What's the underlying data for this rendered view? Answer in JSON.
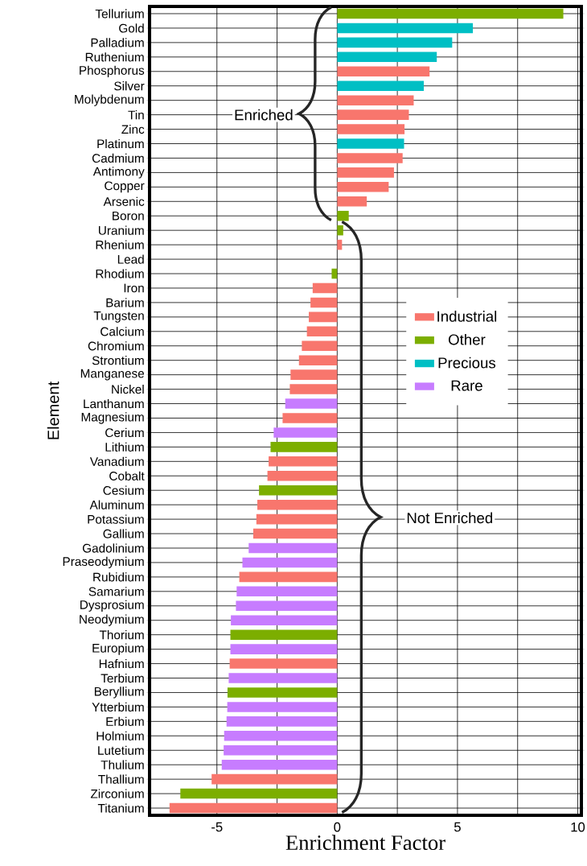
{
  "chart_data": {
    "type": "bar",
    "orientation": "horizontal",
    "xlabel": "Enrichment Factor",
    "ylabel": "Element",
    "categories": [
      "Tellurium",
      "Gold",
      "Palladium",
      "Ruthenium",
      "Phosphorus",
      "Silver",
      "Molybdenum",
      "Tin",
      "Zinc",
      "Platinum",
      "Cadmium",
      "Antimony",
      "Copper",
      "Arsenic",
      "Boron",
      "Uranium",
      "Rhenium",
      "Lead",
      "Rhodium",
      "Iron",
      "Barium",
      "Tungsten",
      "Calcium",
      "Chromium",
      "Strontium",
      "Manganese",
      "Nickel",
      "Lanthanum",
      "Magnesium",
      "Cerium",
      "Lithium",
      "Vanadium",
      "Cobalt",
      "Cesium",
      "Aluminum",
      "Potassium",
      "Gallium",
      "Gadolinium",
      "Praseodymium",
      "Rubidium",
      "Samarium",
      "Dysprosium",
      "Neodymium",
      "Thorium",
      "Europium",
      "Hafnium",
      "Terbium",
      "Beryllium",
      "Ytterbium",
      "Erbium",
      "Holmium",
      "Lutetium",
      "Thulium",
      "Thallium",
      "Zirconium",
      "Titanium"
    ],
    "series": [
      {
        "name": "Industrial",
        "color": "#f8766d",
        "values": [
          null,
          null,
          null,
          null,
          3.84,
          null,
          3.18,
          2.98,
          2.8,
          null,
          2.72,
          2.36,
          2.14,
          1.23,
          null,
          null,
          0.2,
          null,
          null,
          -1.02,
          -1.11,
          -1.18,
          -1.26,
          -1.47,
          -1.59,
          -1.94,
          -1.97,
          null,
          -2.27,
          null,
          null,
          -2.85,
          -2.9,
          null,
          -3.32,
          -3.36,
          -3.49,
          null,
          null,
          -4.07,
          null,
          null,
          null,
          null,
          null,
          -4.47,
          null,
          null,
          null,
          null,
          null,
          null,
          null,
          -5.22,
          null,
          -6.97
        ]
      },
      {
        "name": "Other",
        "color": "#7cae00",
        "values": [
          9.4,
          null,
          null,
          null,
          null,
          null,
          null,
          null,
          null,
          null,
          null,
          null,
          null,
          null,
          0.48,
          0.25,
          null,
          null,
          -0.23,
          null,
          null,
          null,
          null,
          null,
          null,
          null,
          null,
          null,
          null,
          null,
          -2.77,
          null,
          null,
          -3.25,
          null,
          null,
          null,
          null,
          null,
          null,
          null,
          null,
          null,
          -4.44,
          null,
          null,
          null,
          -4.56,
          null,
          null,
          null,
          null,
          null,
          null,
          -6.52,
          null
        ]
      },
      {
        "name": "Precious",
        "color": "#00bfc4",
        "values": [
          null,
          5.64,
          4.78,
          4.14,
          null,
          3.6,
          null,
          null,
          null,
          2.78,
          null,
          null,
          null,
          null,
          null,
          null,
          null,
          null,
          null,
          null,
          null,
          null,
          null,
          null,
          null,
          null,
          null,
          null,
          null,
          null,
          null,
          null,
          null,
          null,
          null,
          null,
          null,
          null,
          null,
          null,
          null,
          null,
          null,
          null,
          null,
          null,
          null,
          null,
          null,
          null,
          null,
          null,
          null,
          null,
          null,
          null
        ]
      },
      {
        "name": "Rare",
        "color": "#c77cff",
        "values": [
          null,
          null,
          null,
          null,
          null,
          null,
          null,
          null,
          null,
          null,
          null,
          null,
          null,
          null,
          null,
          null,
          null,
          null,
          null,
          null,
          null,
          null,
          null,
          null,
          null,
          null,
          null,
          -2.16,
          null,
          -2.64,
          null,
          null,
          null,
          null,
          null,
          null,
          null,
          -3.68,
          -3.94,
          null,
          -4.18,
          -4.21,
          -4.42,
          null,
          -4.44,
          null,
          -4.51,
          null,
          -4.57,
          -4.6,
          -4.7,
          -4.72,
          -4.8,
          null,
          null,
          null
        ]
      }
    ],
    "xlim": [
      -7.8,
      10.15
    ],
    "xticks": [
      -5,
      {
        "value": -2.5,
        "label": null
      },
      0,
      {
        "value": 2.5,
        "label": null
      },
      5,
      {
        "value": 7.5,
        "label": null
      },
      10
    ],
    "grid": true,
    "legend": "right",
    "annotations": [
      "Enriched",
      "Not Enriched"
    ]
  }
}
